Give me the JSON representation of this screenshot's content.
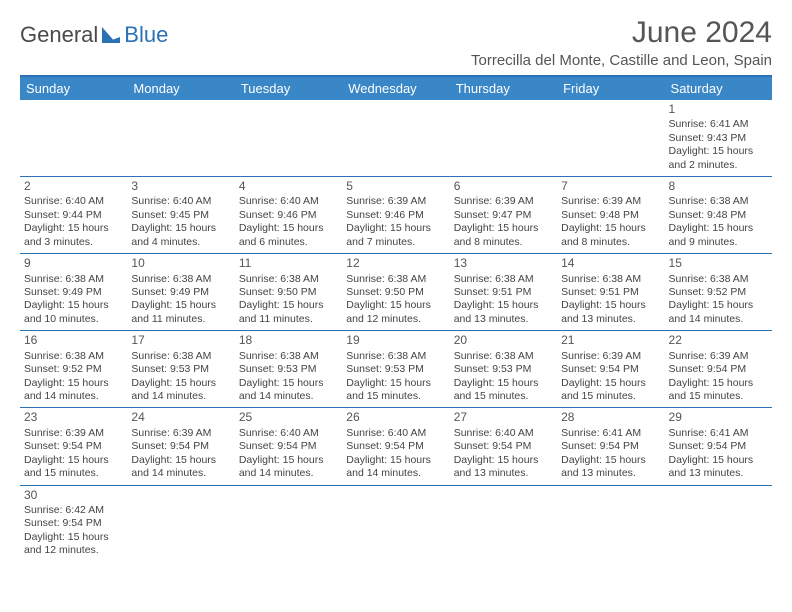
{
  "logo": {
    "part1": "General",
    "part2": "Blue"
  },
  "title": "June 2024",
  "location": "Torrecilla del Monte, Castille and Leon, Spain",
  "weekdays": [
    "Sunday",
    "Monday",
    "Tuesday",
    "Wednesday",
    "Thursday",
    "Friday",
    "Saturday"
  ],
  "colors": {
    "header_bg": "#3a87c8",
    "header_text": "#ffffff",
    "border": "#2a72b5",
    "text": "#444444"
  },
  "weeks": [
    [
      null,
      null,
      null,
      null,
      null,
      null,
      {
        "n": "1",
        "sr": "Sunrise: 6:41 AM",
        "ss": "Sunset: 9:43 PM",
        "dl": "Daylight: 15 hours and 2 minutes."
      }
    ],
    [
      {
        "n": "2",
        "sr": "Sunrise: 6:40 AM",
        "ss": "Sunset: 9:44 PM",
        "dl": "Daylight: 15 hours and 3 minutes."
      },
      {
        "n": "3",
        "sr": "Sunrise: 6:40 AM",
        "ss": "Sunset: 9:45 PM",
        "dl": "Daylight: 15 hours and 4 minutes."
      },
      {
        "n": "4",
        "sr": "Sunrise: 6:40 AM",
        "ss": "Sunset: 9:46 PM",
        "dl": "Daylight: 15 hours and 6 minutes."
      },
      {
        "n": "5",
        "sr": "Sunrise: 6:39 AM",
        "ss": "Sunset: 9:46 PM",
        "dl": "Daylight: 15 hours and 7 minutes."
      },
      {
        "n": "6",
        "sr": "Sunrise: 6:39 AM",
        "ss": "Sunset: 9:47 PM",
        "dl": "Daylight: 15 hours and 8 minutes."
      },
      {
        "n": "7",
        "sr": "Sunrise: 6:39 AM",
        "ss": "Sunset: 9:48 PM",
        "dl": "Daylight: 15 hours and 8 minutes."
      },
      {
        "n": "8",
        "sr": "Sunrise: 6:38 AM",
        "ss": "Sunset: 9:48 PM",
        "dl": "Daylight: 15 hours and 9 minutes."
      }
    ],
    [
      {
        "n": "9",
        "sr": "Sunrise: 6:38 AM",
        "ss": "Sunset: 9:49 PM",
        "dl": "Daylight: 15 hours and 10 minutes."
      },
      {
        "n": "10",
        "sr": "Sunrise: 6:38 AM",
        "ss": "Sunset: 9:49 PM",
        "dl": "Daylight: 15 hours and 11 minutes."
      },
      {
        "n": "11",
        "sr": "Sunrise: 6:38 AM",
        "ss": "Sunset: 9:50 PM",
        "dl": "Daylight: 15 hours and 11 minutes."
      },
      {
        "n": "12",
        "sr": "Sunrise: 6:38 AM",
        "ss": "Sunset: 9:50 PM",
        "dl": "Daylight: 15 hours and 12 minutes."
      },
      {
        "n": "13",
        "sr": "Sunrise: 6:38 AM",
        "ss": "Sunset: 9:51 PM",
        "dl": "Daylight: 15 hours and 13 minutes."
      },
      {
        "n": "14",
        "sr": "Sunrise: 6:38 AM",
        "ss": "Sunset: 9:51 PM",
        "dl": "Daylight: 15 hours and 13 minutes."
      },
      {
        "n": "15",
        "sr": "Sunrise: 6:38 AM",
        "ss": "Sunset: 9:52 PM",
        "dl": "Daylight: 15 hours and 14 minutes."
      }
    ],
    [
      {
        "n": "16",
        "sr": "Sunrise: 6:38 AM",
        "ss": "Sunset: 9:52 PM",
        "dl": "Daylight: 15 hours and 14 minutes."
      },
      {
        "n": "17",
        "sr": "Sunrise: 6:38 AM",
        "ss": "Sunset: 9:53 PM",
        "dl": "Daylight: 15 hours and 14 minutes."
      },
      {
        "n": "18",
        "sr": "Sunrise: 6:38 AM",
        "ss": "Sunset: 9:53 PM",
        "dl": "Daylight: 15 hours and 14 minutes."
      },
      {
        "n": "19",
        "sr": "Sunrise: 6:38 AM",
        "ss": "Sunset: 9:53 PM",
        "dl": "Daylight: 15 hours and 15 minutes."
      },
      {
        "n": "20",
        "sr": "Sunrise: 6:38 AM",
        "ss": "Sunset: 9:53 PM",
        "dl": "Daylight: 15 hours and 15 minutes."
      },
      {
        "n": "21",
        "sr": "Sunrise: 6:39 AM",
        "ss": "Sunset: 9:54 PM",
        "dl": "Daylight: 15 hours and 15 minutes."
      },
      {
        "n": "22",
        "sr": "Sunrise: 6:39 AM",
        "ss": "Sunset: 9:54 PM",
        "dl": "Daylight: 15 hours and 15 minutes."
      }
    ],
    [
      {
        "n": "23",
        "sr": "Sunrise: 6:39 AM",
        "ss": "Sunset: 9:54 PM",
        "dl": "Daylight: 15 hours and 15 minutes."
      },
      {
        "n": "24",
        "sr": "Sunrise: 6:39 AM",
        "ss": "Sunset: 9:54 PM",
        "dl": "Daylight: 15 hours and 14 minutes."
      },
      {
        "n": "25",
        "sr": "Sunrise: 6:40 AM",
        "ss": "Sunset: 9:54 PM",
        "dl": "Daylight: 15 hours and 14 minutes."
      },
      {
        "n": "26",
        "sr": "Sunrise: 6:40 AM",
        "ss": "Sunset: 9:54 PM",
        "dl": "Daylight: 15 hours and 14 minutes."
      },
      {
        "n": "27",
        "sr": "Sunrise: 6:40 AM",
        "ss": "Sunset: 9:54 PM",
        "dl": "Daylight: 15 hours and 13 minutes."
      },
      {
        "n": "28",
        "sr": "Sunrise: 6:41 AM",
        "ss": "Sunset: 9:54 PM",
        "dl": "Daylight: 15 hours and 13 minutes."
      },
      {
        "n": "29",
        "sr": "Sunrise: 6:41 AM",
        "ss": "Sunset: 9:54 PM",
        "dl": "Daylight: 15 hours and 13 minutes."
      }
    ],
    [
      {
        "n": "30",
        "sr": "Sunrise: 6:42 AM",
        "ss": "Sunset: 9:54 PM",
        "dl": "Daylight: 15 hours and 12 minutes."
      },
      null,
      null,
      null,
      null,
      null,
      null
    ]
  ]
}
